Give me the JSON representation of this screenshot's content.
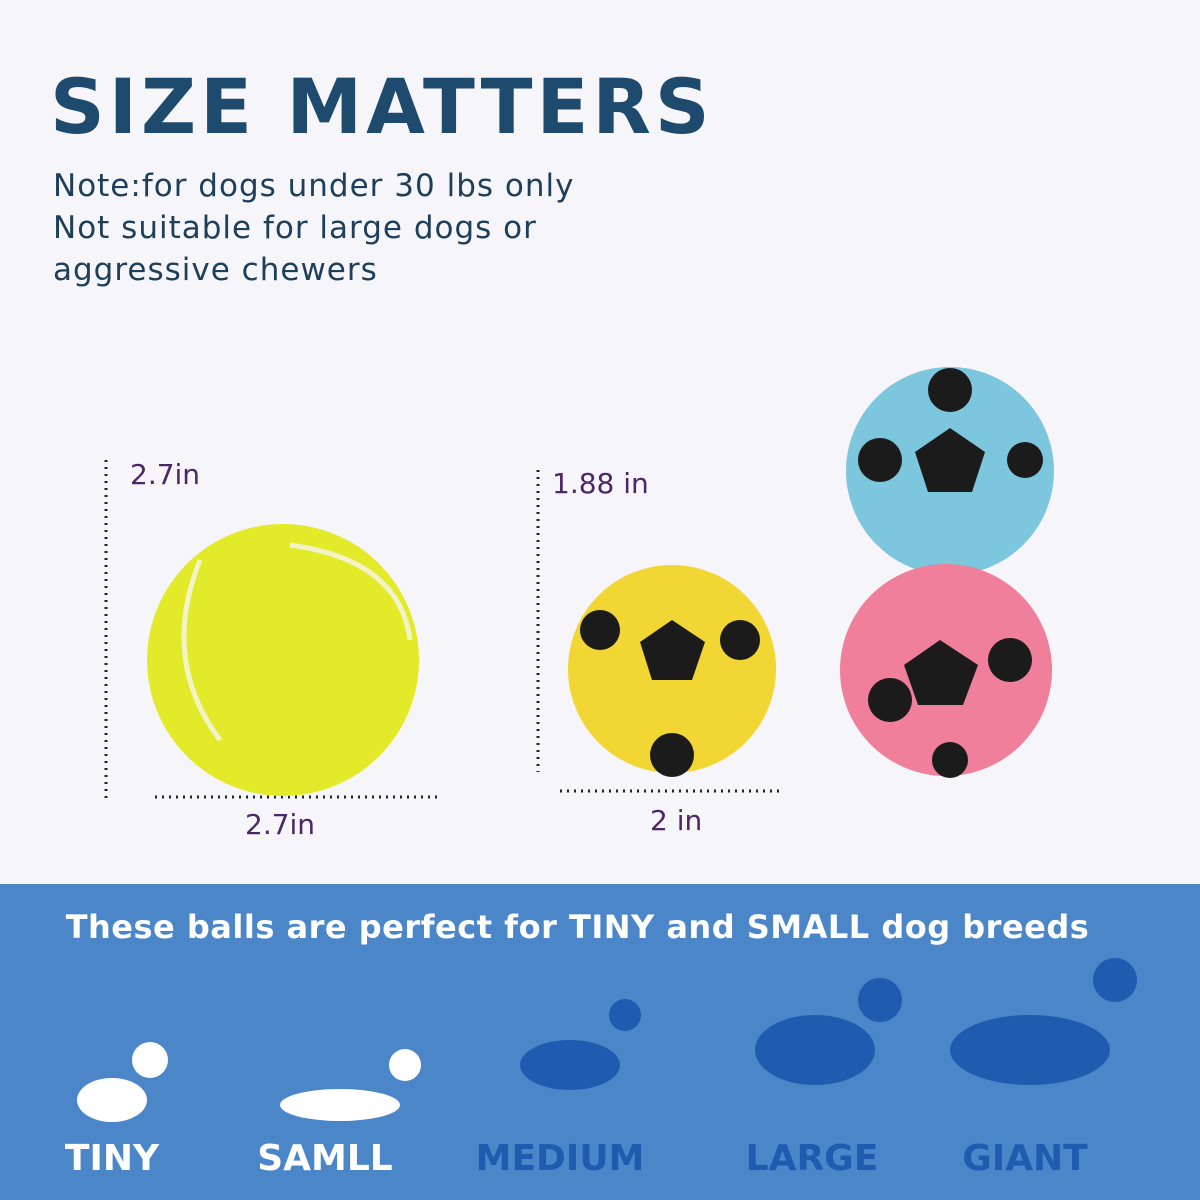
{
  "header": {
    "title": "SIZE MATTERS",
    "notes": [
      "Note:for dogs under 30 lbs only",
      "Not suitable for large dogs or",
      "aggressive chewers"
    ]
  },
  "measurements": {
    "tennis_height": "2.7in",
    "tennis_width": "2.7in",
    "soccer_height": "1.88 in",
    "soccer_width": "2 in"
  },
  "banner": {
    "headline": "These balls are perfect for TINY and SMALL dog breeds",
    "breeds": [
      "TINY",
      "SAMLL",
      "MEDIUM",
      "LARGE",
      "GIANT"
    ]
  }
}
